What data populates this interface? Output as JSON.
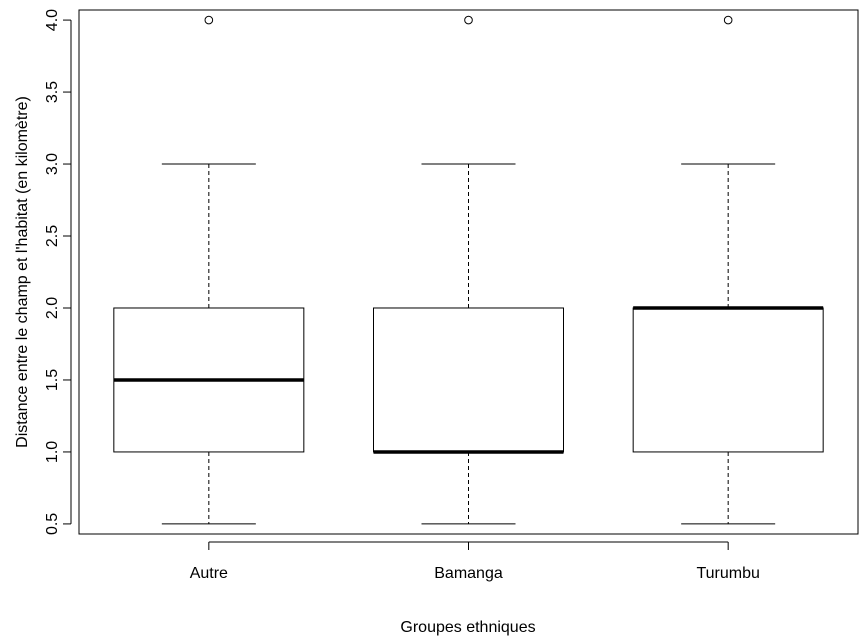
{
  "chart_data": {
    "type": "boxplot",
    "xlabel": "Groupes ethniques",
    "ylabel": "Distance entre le champ et l'habitat (en kilomètre)",
    "ylim": [
      0.43,
      4.07
    ],
    "yticks": [
      "0.5",
      "1.0",
      "1.5",
      "2.0",
      "2.5",
      "3.0",
      "3.5",
      "4.0"
    ],
    "grid": false,
    "categories": [
      "Autre",
      "Bamanga",
      "Turumbu"
    ],
    "boxes": [
      {
        "category": "Autre",
        "whisker_low": 0.5,
        "q1": 1.0,
        "median": 1.5,
        "q3": 2.0,
        "whisker_high": 3.0,
        "outliers": [
          4.0
        ]
      },
      {
        "category": "Bamanga",
        "whisker_low": 0.5,
        "q1": 1.0,
        "median": 1.0,
        "q3": 2.0,
        "whisker_high": 3.0,
        "outliers": [
          4.0
        ]
      },
      {
        "category": "Turumbu",
        "whisker_low": 0.5,
        "q1": 1.0,
        "median": 2.0,
        "q3": 2.0,
        "whisker_high": 3.0,
        "outliers": [
          4.0
        ]
      }
    ]
  }
}
